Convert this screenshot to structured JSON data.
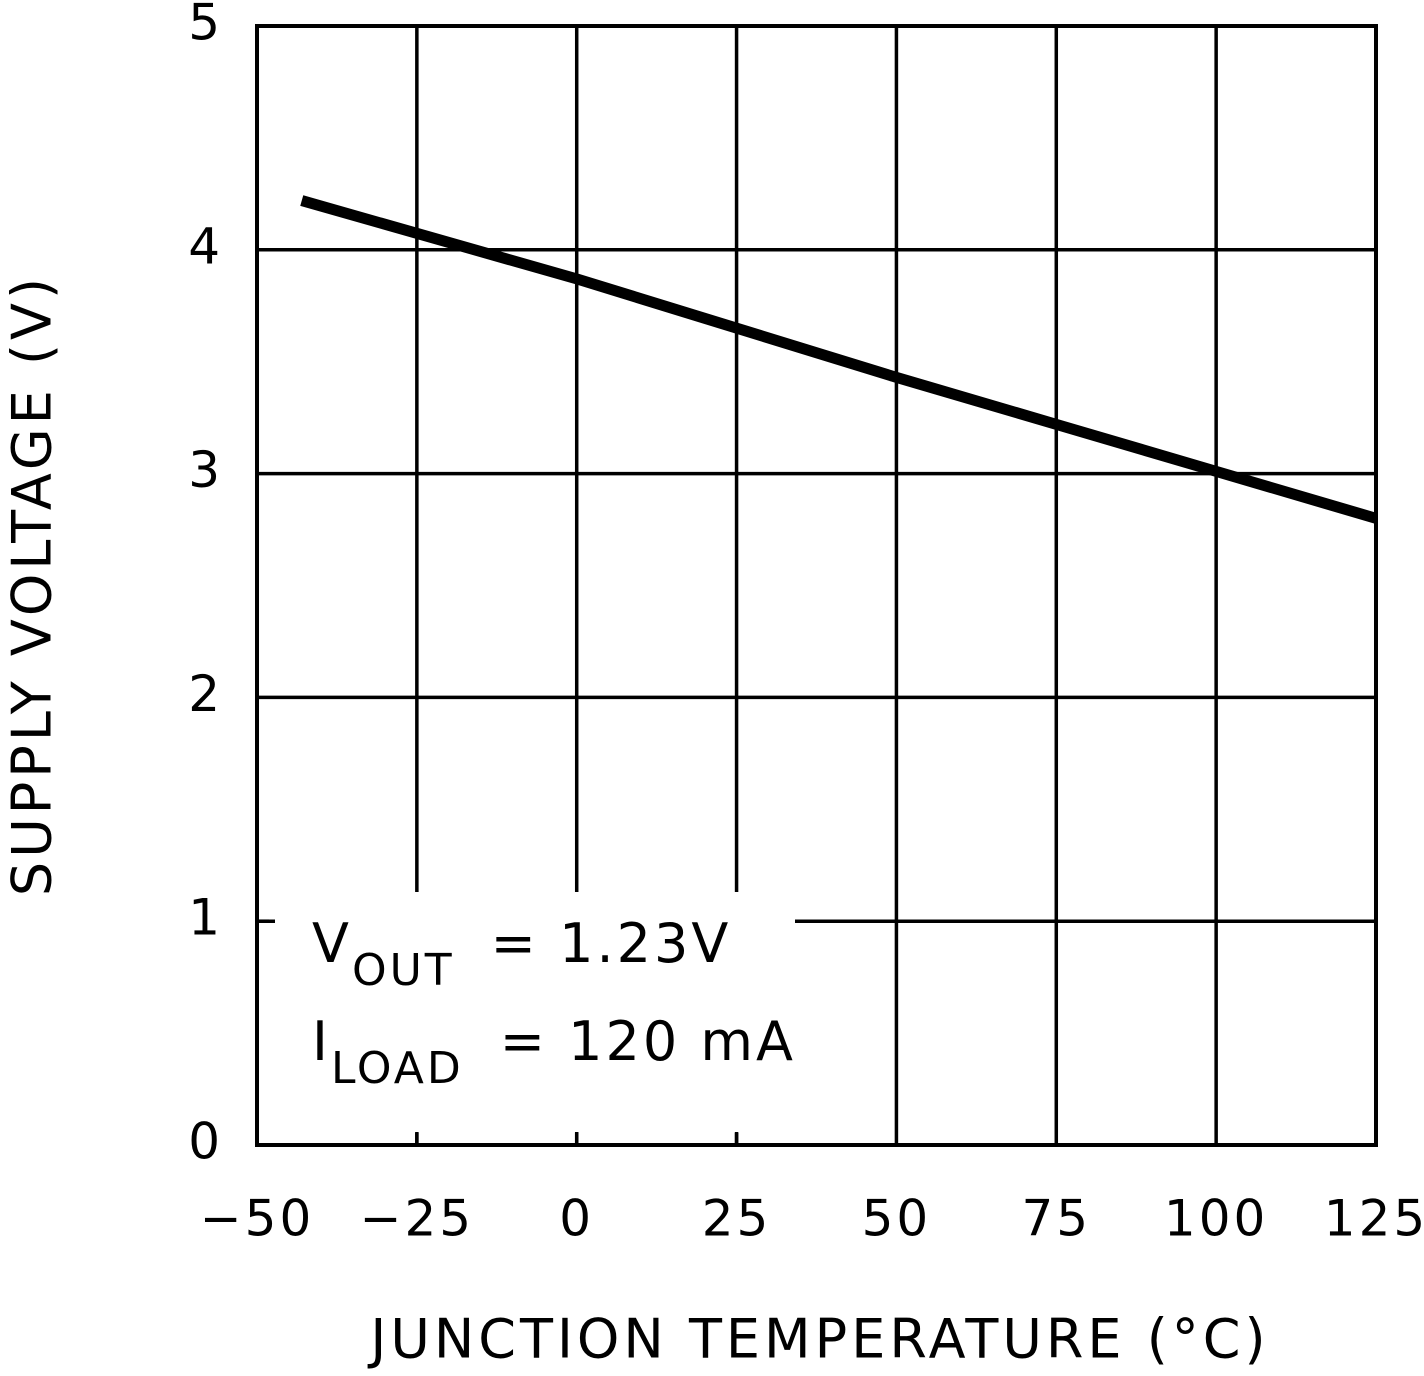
{
  "chart_data": {
    "type": "line",
    "x_label": "JUNCTION TEMPERATURE (°C)",
    "y_label": "SUPPLY VOLTAGE (V)",
    "x": [
      -43,
      0,
      25,
      50,
      75,
      100,
      125
    ],
    "series": [
      {
        "color": "#000000",
        "values": [
          4.22,
          3.87,
          3.65,
          3.43,
          3.22,
          3.01,
          2.8
        ]
      }
    ],
    "xlim": [
      -50,
      125
    ],
    "xticks": [
      {
        "value": -50,
        "label": "−50"
      },
      {
        "value": -25,
        "label": "−25"
      },
      0,
      25,
      50,
      75,
      100,
      125
    ],
    "ylim": [
      0,
      5
    ],
    "yticks": [
      0,
      1,
      2,
      3,
      4,
      5
    ],
    "grid": true,
    "annotations": [
      {
        "base": "V",
        "sub": "OUT",
        "text": "=  1.23V"
      },
      {
        "base": "I",
        "sub": "LOAD",
        "text": "=  120 mA"
      }
    ]
  }
}
